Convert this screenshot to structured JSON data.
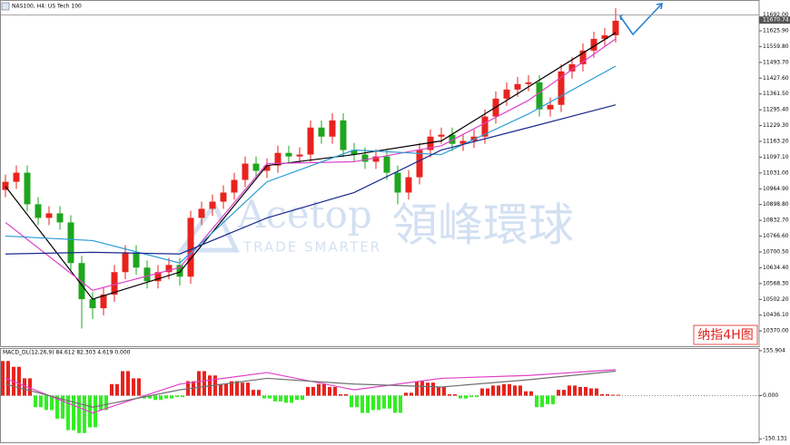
{
  "chart_data": [
    {
      "type": "candlestick",
      "title": "NAS100, H4: US Tech 100",
      "annotation": "纳指4H图",
      "up_color": "#e8231e",
      "down_color": "#1fa51f",
      "open": [
        10960,
        10994,
        11032,
        10900,
        10843,
        10862,
        10824,
        10654,
        10503,
        10465,
        10522,
        10616,
        10699,
        10635,
        10578,
        10616,
        10646,
        10597,
        10843,
        10881,
        10911,
        10949,
        11002,
        11070,
        11040,
        11062,
        11115,
        11100,
        11108,
        11221,
        11183,
        11251,
        11127,
        11108,
        11078,
        11100,
        11032,
        10949,
        11013,
        11127,
        11183,
        11191,
        11153,
        11165,
        11183,
        11267,
        11342,
        11380,
        11403,
        11410,
        11297,
        11316,
        11456,
        11486,
        11543,
        11592,
        11607
      ],
      "high": [
        11024,
        11062,
        11062,
        10930,
        10892,
        10892,
        10854,
        10684,
        10533,
        10552,
        10646,
        10729,
        10729,
        10665,
        10646,
        10676,
        10676,
        10873,
        10911,
        10941,
        10979,
        11032,
        11100,
        11100,
        11092,
        11145,
        11145,
        11138,
        11251,
        11251,
        11281,
        11281,
        11157,
        11138,
        11130,
        11130,
        11062,
        11043,
        11157,
        11213,
        11221,
        11221,
        11195,
        11213,
        11297,
        11372,
        11410,
        11433,
        11440,
        11440,
        11346,
        11486,
        11516,
        11573,
        11622,
        11637,
        11720
      ],
      "low": [
        10930,
        10964,
        10870,
        10813,
        10813,
        10794,
        10624,
        10380,
        10420,
        10435,
        10492,
        10586,
        10605,
        10548,
        10548,
        10586,
        10560,
        10567,
        10813,
        10851,
        10881,
        10919,
        10972,
        11010,
        11010,
        11032,
        11070,
        11070,
        11078,
        11153,
        11153,
        11097,
        11078,
        11048,
        11048,
        11002,
        10900,
        10919,
        10983,
        11097,
        11153,
        11123,
        11123,
        11135,
        11153,
        11237,
        11312,
        11350,
        11373,
        11267,
        11267,
        11286,
        11426,
        11456,
        11513,
        11562,
        11577
      ],
      "close": [
        10994,
        11032,
        10900,
        10843,
        10862,
        10824,
        10654,
        10503,
        10465,
        10522,
        10616,
        10699,
        10635,
        10578,
        10616,
        10646,
        10597,
        10843,
        10881,
        10911,
        10949,
        11002,
        11070,
        11040,
        11062,
        11115,
        11100,
        11108,
        11221,
        11183,
        11251,
        11127,
        11108,
        11078,
        11100,
        11032,
        10949,
        11013,
        11127,
        11183,
        11191,
        11153,
        11165,
        11183,
        11267,
        11342,
        11380,
        11403,
        11410,
        11297,
        11316,
        11456,
        11486,
        11543,
        11592,
        11607,
        11668
      ],
      "series": [
        {
          "color": "#000000",
          "x": [
            0,
            8,
            16,
            24,
            32,
            40,
            48,
            56
          ],
          "values": [
            10975,
            10503,
            10616,
            11062,
            11108,
            11165,
            11391,
            11618
          ]
        },
        {
          "color": "#e040c8",
          "x": [
            0,
            8,
            16,
            24,
            32,
            40,
            48,
            56
          ],
          "values": [
            10824,
            10540,
            10635,
            11070,
            11078,
            11145,
            11335,
            11592
          ]
        },
        {
          "color": "#2a9ad8",
          "x": [
            0,
            8,
            16,
            24,
            32,
            40,
            48,
            56
          ],
          "values": [
            10767,
            10748,
            10654,
            10994,
            11127,
            11108,
            11278,
            11478
          ]
        },
        {
          "color": "#1a2a8c",
          "x": [
            0,
            8,
            16,
            24,
            32,
            40,
            48,
            56
          ],
          "values": [
            10692,
            10699,
            10692,
            10843,
            10949,
            11127,
            11221,
            11316
          ]
        }
      ],
      "price_line": {
        "value": 11692,
        "label": "11692.00"
      },
      "last_price": {
        "value": 11670.74,
        "label": "11670.74"
      },
      "ylim": [
        10306,
        11751
      ],
      "yticks": [
        {
          "value": 11625.9,
          "label": "11625.90"
        },
        {
          "value": 11559.8,
          "label": "11559.80"
        },
        {
          "value": 11493.7,
          "label": "11493.70"
        },
        {
          "value": 11427.6,
          "label": "11427.60"
        },
        {
          "value": 11361.5,
          "label": "11361.50"
        },
        {
          "value": 11295.4,
          "label": "11295.40"
        },
        {
          "value": 11229.3,
          "label": "11229.30"
        },
        {
          "value": 11163.2,
          "label": "11163.20"
        },
        {
          "value": 11097.1,
          "label": "11097.10"
        },
        {
          "value": 11031,
          "label": "11031.00"
        },
        {
          "value": 10964.9,
          "label": "10964.90"
        },
        {
          "value": 10898.8,
          "label": "10898.80"
        },
        {
          "value": 10832.7,
          "label": "10832.70"
        },
        {
          "value": 10766.6,
          "label": "10766.60"
        },
        {
          "value": 10700.5,
          "label": "10700.50"
        },
        {
          "value": 10634.4,
          "label": "10634.40"
        },
        {
          "value": 10568.3,
          "label": "10568.30"
        },
        {
          "value": 10502.2,
          "label": "10502.20"
        },
        {
          "value": 10436.1,
          "label": "10436.10"
        },
        {
          "value": 10370,
          "label": "10370.00"
        }
      ],
      "grid": false
    },
    {
      "type": "bar",
      "title": "MACD_DL(12,26,9) 84.612 82.303 4.619 0.000",
      "positive_color": "#e8231e",
      "negative_color": "#33ee22",
      "values": [
        120,
        100,
        60,
        -40,
        -50,
        -80,
        -120,
        -130,
        -110,
        -50,
        40,
        85,
        60,
        -10,
        -15,
        -10,
        -5,
        50,
        85,
        70,
        40,
        50,
        45,
        20,
        -10,
        -20,
        -25,
        -15,
        30,
        40,
        30,
        5,
        -40,
        -60,
        -50,
        -45,
        -60,
        10,
        50,
        45,
        30,
        5,
        -10,
        -5,
        25,
        35,
        40,
        35,
        15,
        -40,
        -30,
        20,
        35,
        30,
        25,
        5,
        3
      ],
      "series": [
        {
          "color": "#e040c8",
          "x": [
            0,
            8,
            16,
            24,
            32,
            40,
            48,
            56
          ],
          "values": [
            60,
            -60,
            40,
            80,
            20,
            60,
            70,
            90
          ]
        },
        {
          "color": "#707070",
          "x": [
            0,
            8,
            16,
            24,
            32,
            40,
            48,
            56
          ],
          "values": [
            40,
            -40,
            20,
            60,
            40,
            30,
            55,
            85
          ]
        }
      ],
      "ylim": [
        -162,
        162
      ],
      "yticks": [
        {
          "value": 155.904,
          "label": "155.904"
        },
        {
          "value": 0,
          "label": "0.000"
        },
        {
          "value": -150.131,
          "label": "-150.131"
        }
      ],
      "grid": false,
      "zero_line": true
    }
  ],
  "watermark": {
    "brand": "Acetop",
    "chinese": "領峰環球",
    "tagline": "TRADE SMARTER"
  }
}
